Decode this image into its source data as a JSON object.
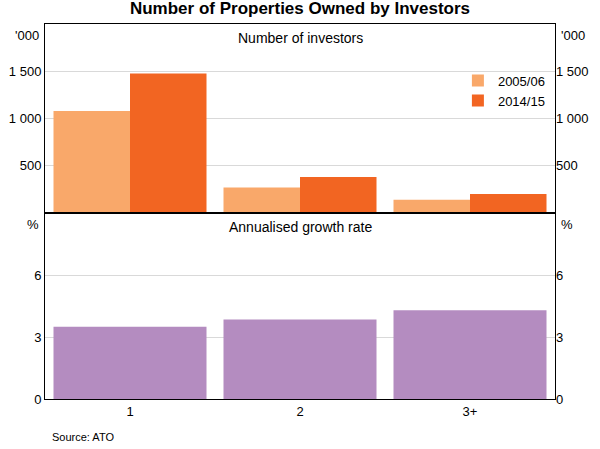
{
  "title": "Number of Properties Owned by Investors",
  "source": "Source: ATO",
  "chart_data": [
    {
      "type": "bar",
      "title": "Number of investors",
      "ylabel": "'000",
      "categories": [
        "1",
        "2",
        "3+"
      ],
      "series": [
        {
          "name": "2005/06",
          "color": "#f9a86a",
          "values": [
            1080,
            270,
            140
          ]
        },
        {
          "name": "2014/15",
          "color": "#f26522",
          "values": [
            1475,
            380,
            200
          ]
        }
      ],
      "ylim": [
        0,
        2000
      ],
      "yticks": [
        500,
        {
          "value": 1000,
          "label": "1 000"
        },
        {
          "value": 1500,
          "label": "1 500"
        }
      ],
      "grid": true,
      "legend": "upper right",
      "tick_labels": "y"
    },
    {
      "type": "bar",
      "title": "Annualised growth rate",
      "ylabel": "%",
      "categories": [
        "1",
        "2",
        "3+"
      ],
      "values": [
        3.5,
        3.85,
        4.3
      ],
      "color": "#b48cc0",
      "ylim": [
        0,
        9
      ],
      "yticks": [
        0,
        3,
        6
      ],
      "grid": true
    }
  ]
}
